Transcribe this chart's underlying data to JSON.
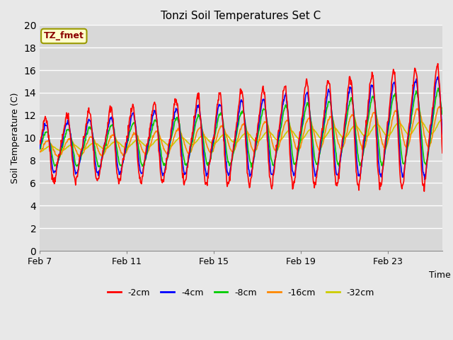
{
  "title": "Tonzi Soil Temperatures Set C",
  "xlabel": "Time",
  "ylabel": "Soil Temperature (C)",
  "ylim": [
    0,
    20
  ],
  "yticks": [
    0,
    2,
    4,
    6,
    8,
    10,
    12,
    14,
    16,
    18,
    20
  ],
  "xtick_labels": [
    "Feb 7",
    "Feb 11",
    "Feb 15",
    "Feb 19",
    "Feb 23"
  ],
  "xtick_positions": [
    0,
    4,
    8,
    12,
    16
  ],
  "total_days": 18.5,
  "annotation_text": "TZ_fmet",
  "series_colors": [
    "#ff0000",
    "#0000ff",
    "#00cc00",
    "#ff8800",
    "#cccc00"
  ],
  "series_labels": [
    "-2cm",
    "-4cm",
    "-8cm",
    "-16cm",
    "-32cm"
  ],
  "bg_color": "#e8e8e8",
  "plot_bg_color": "#d8d8d8",
  "grid_color": "#ffffff"
}
